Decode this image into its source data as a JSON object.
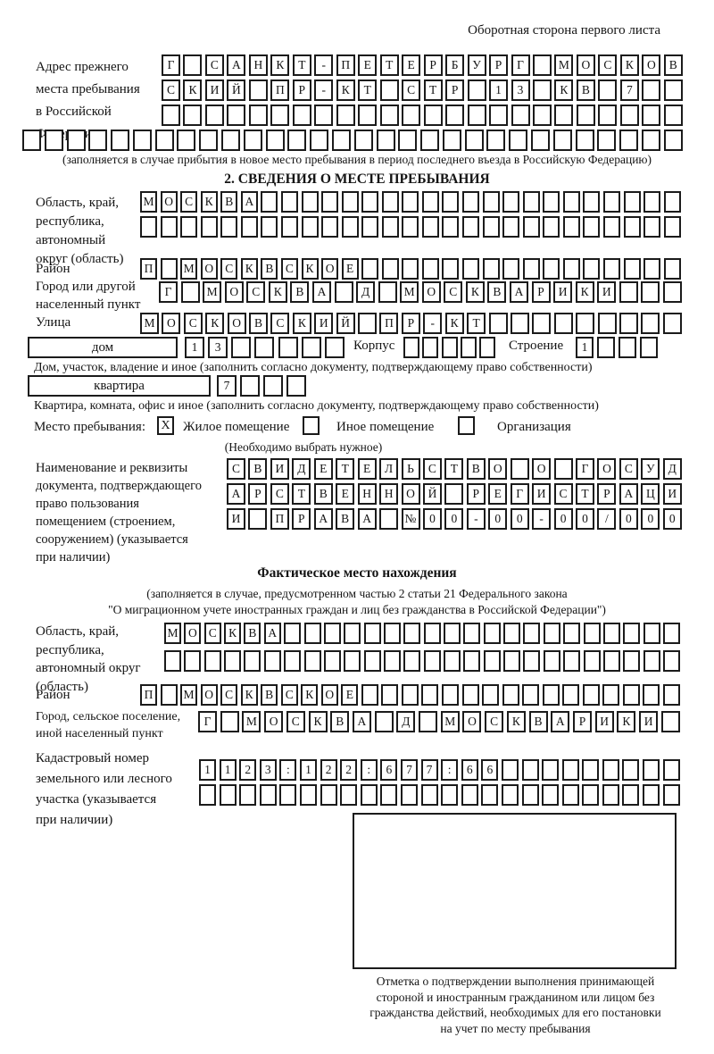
{
  "page": {
    "header_note": "Оборотная сторона первого листа"
  },
  "prev_address": {
    "label_lines": [
      "Адрес прежнего",
      "места пребывания",
      "в Российской",
      "Федерации"
    ],
    "row1": "Г САНКТ-ПЕТЕРБУРГ МОСКОВ",
    "row2": "СКИЙ ПР-КТ СТР 13 КВ 7",
    "row3": "",
    "row4": "",
    "note": "(заполняется в случае прибытия в новое место пребывания в период последнего въезда в Российскую Федерацию)"
  },
  "section2": {
    "title": "2. СВЕДЕНИЯ О МЕСТЕ ПРЕБЫВАНИЯ",
    "oblast": {
      "label_lines": [
        "Область, край,",
        "республика,",
        "автономный",
        "округ (область)"
      ],
      "row1": "МОСКВА",
      "row2": ""
    },
    "raion": {
      "label": "Район",
      "row": "П МОСКВСКОЕ"
    },
    "gorod": {
      "label_lines": [
        "Город или другой",
        "населенный пункт"
      ],
      "row": "Г МОСКВА Д МОСКВАРИКИ"
    },
    "ulitsa": {
      "label": "Улица",
      "row": "МОСКОВСКИЙ ПР-КТ"
    },
    "dom": {
      "box_label": "дом",
      "cells": "13",
      "korpus_label": "Корпус",
      "korpus_cells": "",
      "stroenie_label": "Строение",
      "stroenie_cells": "1"
    },
    "dom_note": "Дом, участок, владение и иное (заполнить согласно документу, подтверждающему право собственности)",
    "kvartira": {
      "box_label": "квартира",
      "cells": "7"
    },
    "kvartira_note": "Квартира, комната, офис и иное (заполнить согласно документу, подтверждающему право собственности)",
    "stay_place": {
      "label": "Место пребывания:",
      "mark": "X",
      "option1": "Жилое помещение",
      "option2": "Иное помещение",
      "option3": "Организация",
      "hint": "(Необходимо выбрать нужное)"
    },
    "doc": {
      "label_lines": [
        "Наименование и реквизиты",
        "документа, подтверждающего",
        "право пользования",
        "помещением (строением,",
        "сооружением) (указывается",
        "при наличии)"
      ],
      "row1": "СВИДЕТЕЛЬСТВО О ГОСУД",
      "row2": "АРСТВЕННОЙ РЕГИСТРАЦИ",
      "row3": "И ПРАВА №00-00-00/000"
    }
  },
  "fact": {
    "title": "Фактическое место нахождения",
    "note_lines": [
      "(заполняется в случае, предусмотренном частью 2 статьи 21 Федерального закона",
      "\"О миграционном учете иностранных граждан и лиц без гражданства в Российской Федерации\")"
    ],
    "oblast": {
      "label_lines": [
        "Область, край,",
        "республика,",
        "автономный округ",
        "(область)"
      ],
      "row1": "МОСКВА",
      "row2": ""
    },
    "raion": {
      "label": "Район",
      "row": "П МОСКВСКОЕ"
    },
    "gorod": {
      "label_lines": [
        "Город, сельское поселение,",
        "иной населенный пункт"
      ],
      "row": "Г МОСКВА Д МОСКВАРИКИ"
    },
    "kadastr": {
      "label_lines": [
        "Кадастровый номер",
        "земельного или лесного",
        "участка (указывается",
        "при наличии)"
      ],
      "row1": "1123:122:677:66",
      "row2": ""
    },
    "stamp_caption_lines": [
      "Отметка о подтверждении выполнения принимающей",
      "стороной и иностранным гражданином или лицом без",
      "гражданства действий, необходимых для его постановки",
      "на учет по месту пребывания"
    ]
  }
}
